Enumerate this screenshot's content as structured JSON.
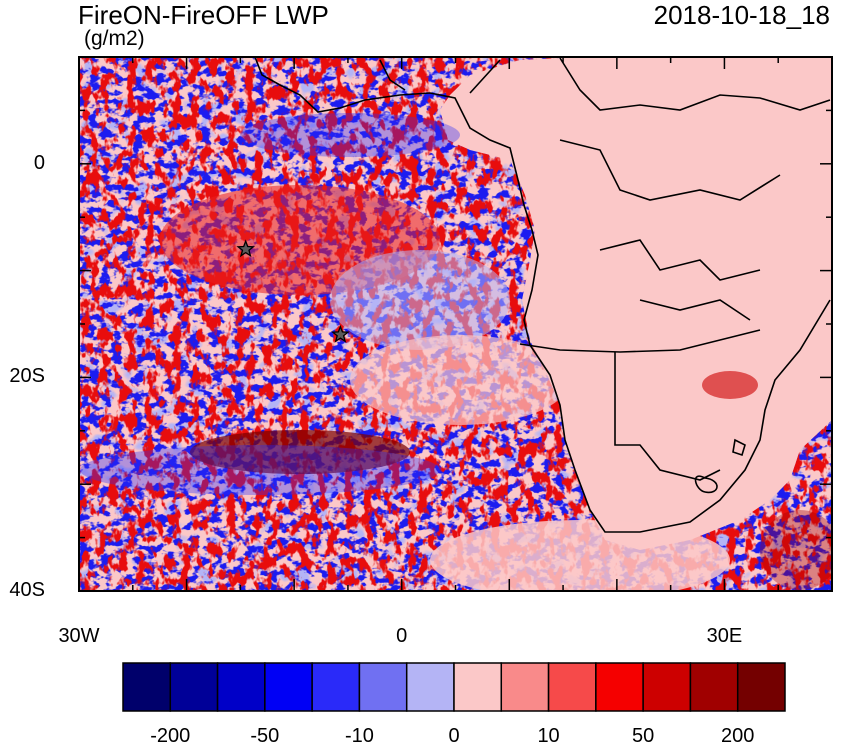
{
  "title": "FireON-FireOFF LWP",
  "units": "(g/m2)",
  "time": "2018-10-18_18",
  "lat_labels": [
    {
      "text": "0",
      "lat": 0
    },
    {
      "text": "20S",
      "lat": -20
    },
    {
      "text": "40S",
      "lat": -40
    }
  ],
  "lon_labels": [
    {
      "text": "30W",
      "lon": -30
    },
    {
      "text": "0",
      "lon": 0
    },
    {
      "text": "30E",
      "lon": 30
    }
  ],
  "colorbar": {
    "colors": [
      "#00006b",
      "#000098",
      "#0000c8",
      "#0000f5",
      "#2a2af9",
      "#7070f2",
      "#b4b4f5",
      "#fbc8c8",
      "#f98a8a",
      "#f64a4a",
      "#f50000",
      "#cd0000",
      "#a00000",
      "#740000"
    ],
    "labels": [
      "-200",
      "-50",
      "-10",
      "0",
      "10",
      "50",
      "200"
    ]
  },
  "markers": [
    {
      "name": "star",
      "lon": -14.5,
      "lat": -8
    },
    {
      "name": "star",
      "lon": -5.7,
      "lat": -16
    }
  ],
  "map_extent": {
    "lon": [
      -30,
      40
    ],
    "lat": [
      -40,
      10
    ]
  }
}
